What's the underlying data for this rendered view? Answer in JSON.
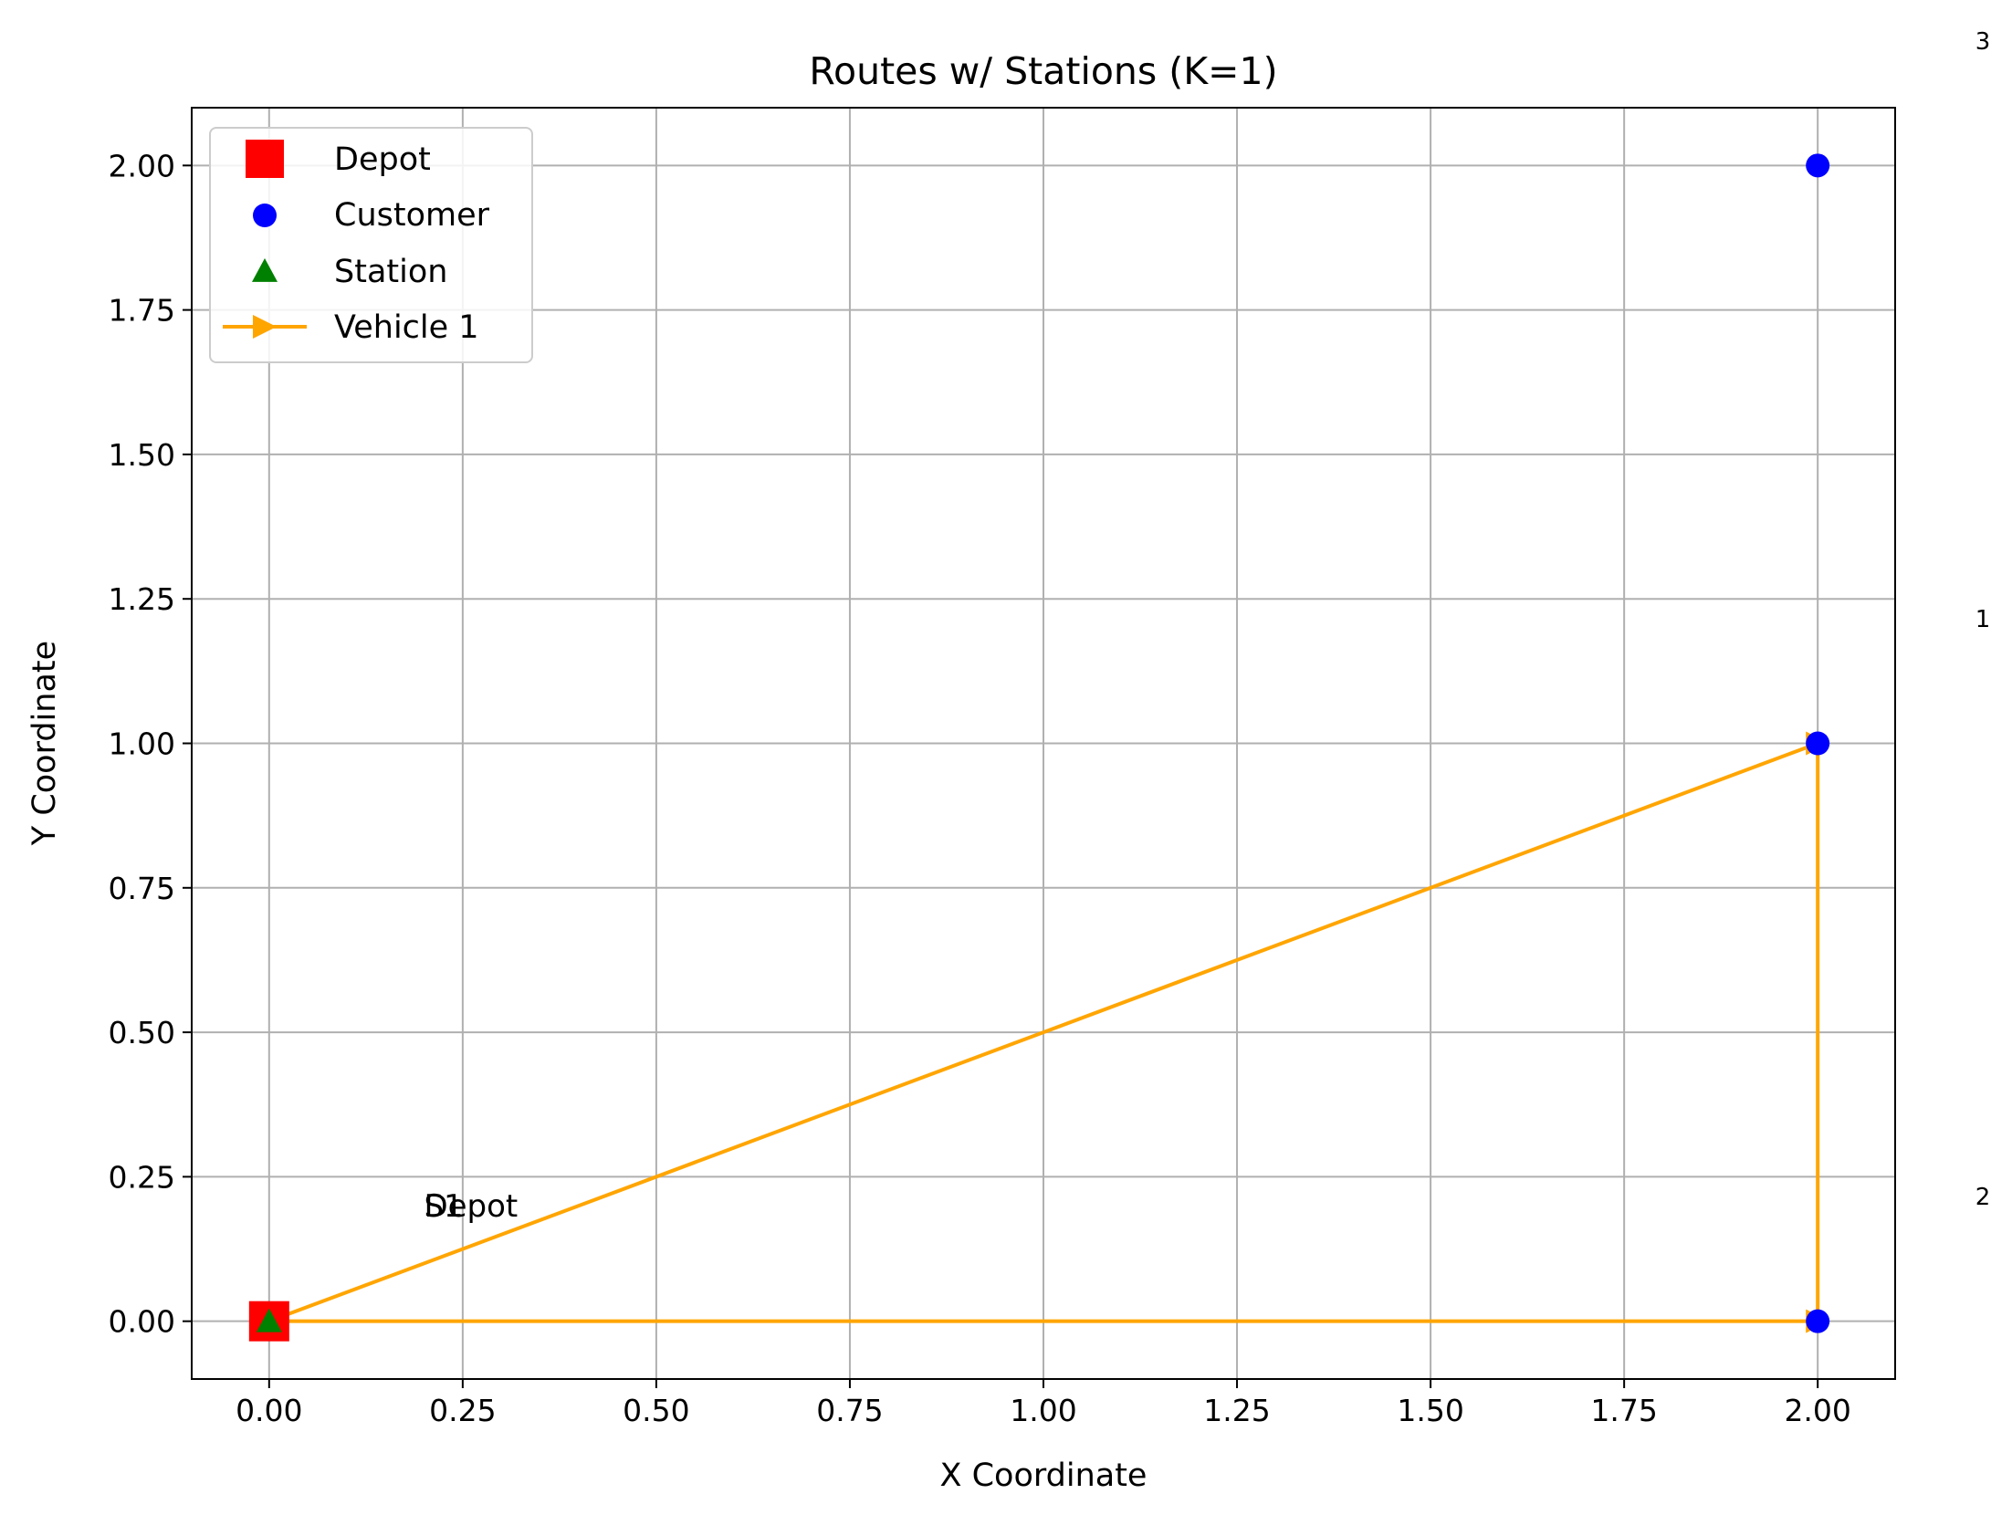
{
  "chart_data": {
    "type": "scatter",
    "title": "Routes w/ Stations (K=1)",
    "xlabel": "X Coordinate",
    "ylabel": "Y Coordinate",
    "xlim": [
      -0.1,
      2.1
    ],
    "ylim": [
      -0.1,
      2.1
    ],
    "grid": true,
    "legend_position": "top-left",
    "x_ticks": [
      "0.00",
      "0.25",
      "0.50",
      "0.75",
      "1.00",
      "1.25",
      "1.50",
      "1.75",
      "2.00"
    ],
    "y_ticks": [
      "0.00",
      "0.25",
      "0.50",
      "0.75",
      "1.00",
      "1.25",
      "1.50",
      "1.75",
      "2.00"
    ],
    "series": [
      {
        "name": "Depot",
        "marker": "square",
        "color": "#ff0000",
        "points": [
          [
            0,
            0
          ]
        ]
      },
      {
        "name": "Customer",
        "marker": "circle",
        "color": "#0000ff",
        "points": [
          [
            2,
            2
          ],
          [
            2,
            1
          ],
          [
            2,
            0
          ]
        ]
      },
      {
        "name": "Station",
        "marker": "triangle",
        "color": "#008000",
        "points": [
          [
            0,
            0
          ]
        ]
      },
      {
        "name": "Vehicle 1",
        "marker": "arrow-line",
        "color": "#ffa500",
        "route": [
          [
            0,
            0
          ],
          [
            2,
            1
          ],
          [
            2,
            0
          ],
          [
            0,
            0
          ]
        ]
      }
    ],
    "annotations": [
      {
        "text": "Depot",
        "x": 0.2,
        "y": 0.2
      },
      {
        "text": "S1",
        "x": 0.2,
        "y": 0.2
      }
    ],
    "side_labels": [
      "3",
      "1",
      "2"
    ]
  }
}
